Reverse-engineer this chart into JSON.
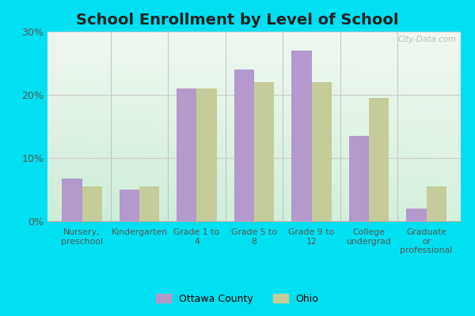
{
  "title": "School Enrollment by Level of School",
  "categories": [
    "Nursery,\npreschool",
    "Kindergarten",
    "Grade 1 to\n4",
    "Grade 5 to\n8",
    "Grade 9 to\n12",
    "College\nundergrad",
    "Graduate\nor\nprofessional"
  ],
  "ottawa_county": [
    6.8,
    5.0,
    21.0,
    24.0,
    27.0,
    13.5,
    2.0
  ],
  "ohio": [
    5.5,
    5.5,
    21.0,
    22.0,
    22.0,
    19.5,
    5.5
  ],
  "ottawa_color": "#b399cc",
  "ohio_color": "#c5cc99",
  "ylim": [
    0,
    30
  ],
  "yticks": [
    0,
    10,
    20,
    30
  ],
  "ytick_labels": [
    "0%",
    "10%",
    "20%",
    "30%"
  ],
  "outer_background": "#00e0f0",
  "legend_ottawa": "Ottawa County",
  "legend_ohio": "Ohio",
  "watermark": "City-Data.com",
  "grid_color": "#cccccc",
  "title_fontsize": 14
}
